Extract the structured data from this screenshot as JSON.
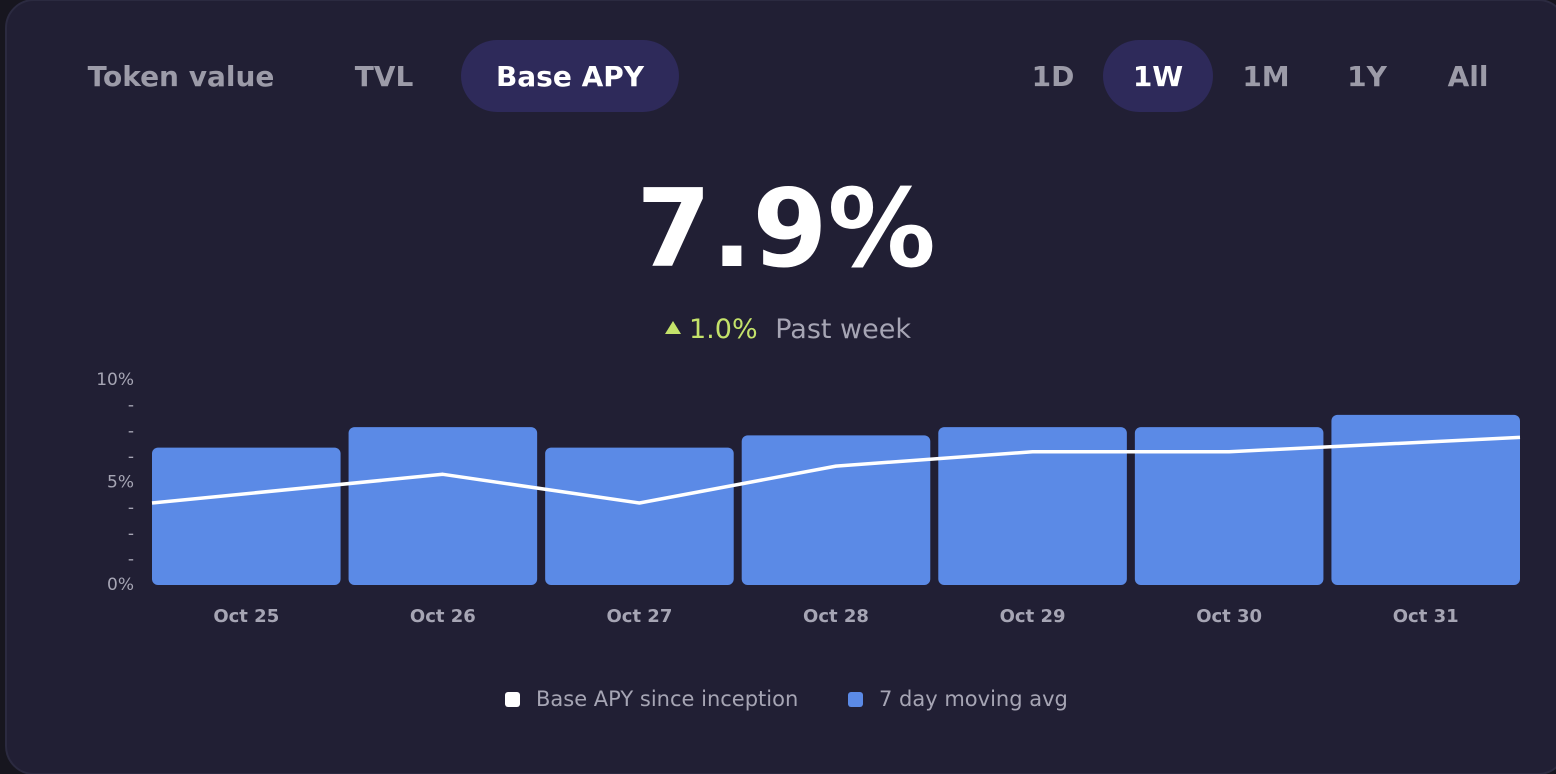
{
  "tabs": [
    "Token value",
    "TVL",
    "Base APY"
  ],
  "active_tab": 2,
  "ranges": [
    "1D",
    "1W",
    "1M",
    "1Y",
    "All"
  ],
  "active_range": 1,
  "headline": {
    "value": "7.9%",
    "change": "1.0%",
    "change_label": "Past week"
  },
  "chart_data": {
    "type": "bar",
    "categories": [
      "Oct 25",
      "Oct 26",
      "Oct 27",
      "Oct 28",
      "Oct 29",
      "Oct 30",
      "Oct 31"
    ],
    "series": [
      {
        "name": "Base APY since inception",
        "type": "line",
        "color": "#ffffff",
        "values": [
          4.0,
          5.4,
          4.0,
          5.8,
          6.5,
          6.5,
          7.2
        ]
      },
      {
        "name": "7 day moving avg",
        "type": "bar",
        "color": "#5b8ae6",
        "values": [
          6.7,
          7.7,
          6.7,
          7.3,
          7.7,
          7.7,
          8.3
        ]
      }
    ],
    "ylim": [
      0,
      10
    ],
    "yticks": [
      {
        "value": 0,
        "label": "0%"
      },
      {
        "value": 1.25,
        "label": "-"
      },
      {
        "value": 2.5,
        "label": "-"
      },
      {
        "value": 3.75,
        "label": "-"
      },
      {
        "value": 5,
        "label": "5%"
      },
      {
        "value": 6.25,
        "label": "-"
      },
      {
        "value": 7.5,
        "label": "-"
      },
      {
        "value": 8.75,
        "label": "-"
      },
      {
        "value": 10,
        "label": "10%"
      }
    ]
  }
}
